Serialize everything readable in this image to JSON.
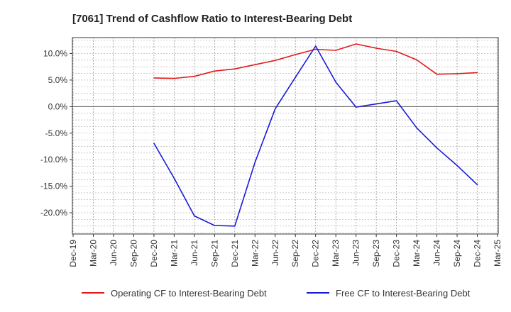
{
  "chart_data": {
    "type": "line",
    "title": "[7061]  Trend of Cashflow Ratio to Interest-Bearing Debt",
    "xlabel": "",
    "ylabel": "",
    "x_ticks": [
      "Dec-19",
      "Mar-20",
      "Jun-20",
      "Sep-20",
      "Dec-20",
      "Mar-21",
      "Jun-21",
      "Sep-21",
      "Dec-21",
      "Mar-22",
      "Jun-22",
      "Sep-22",
      "Dec-22",
      "Mar-23",
      "Jun-23",
      "Sep-23",
      "Dec-23",
      "Mar-24",
      "Jun-24",
      "Sep-24",
      "Dec-24",
      "Mar-25"
    ],
    "y_ticks": [
      10.0,
      5.0,
      0.0,
      -5.0,
      -10.0,
      -15.0,
      -20.0
    ],
    "y_tick_labels": [
      "10.0%",
      "5.0%",
      "0.0%",
      "-5.0%",
      "-10.0%",
      "-15.0%",
      "-20.0%"
    ],
    "ylim": [
      -24.0,
      13.0
    ],
    "grid": true,
    "legend_position": "bottom",
    "series": [
      {
        "name": "Operating CF to Interest-Bearing Debt",
        "color": "#e41a1c",
        "x": [
          "Dec-20",
          "Mar-21",
          "Jun-21",
          "Sep-21",
          "Dec-21",
          "Mar-22",
          "Jun-22",
          "Sep-22",
          "Dec-22",
          "Mar-23",
          "Jun-23",
          "Sep-23",
          "Dec-23",
          "Mar-24",
          "Jun-24",
          "Sep-24",
          "Dec-24"
        ],
        "values": [
          5.4,
          5.3,
          5.7,
          6.7,
          7.1,
          7.9,
          8.7,
          9.8,
          10.8,
          10.6,
          11.8,
          11.0,
          10.4,
          8.8,
          6.1,
          6.2,
          6.4
        ]
      },
      {
        "name": "Free CF to Interest-Bearing Debt",
        "color": "#1a1adb",
        "x": [
          "Dec-20",
          "Mar-21",
          "Jun-21",
          "Sep-21",
          "Dec-21",
          "Mar-22",
          "Jun-22",
          "Sep-22",
          "Dec-22",
          "Mar-23",
          "Jun-23",
          "Sep-23",
          "Dec-23",
          "Mar-24",
          "Jun-24",
          "Sep-24",
          "Dec-24"
        ],
        "values": [
          -6.9,
          -13.5,
          -20.6,
          -22.4,
          -22.5,
          -10.5,
          -0.4,
          5.5,
          11.4,
          4.6,
          -0.1,
          0.5,
          1.1,
          -4.0,
          -7.8,
          -11.1,
          -14.7
        ]
      }
    ]
  }
}
